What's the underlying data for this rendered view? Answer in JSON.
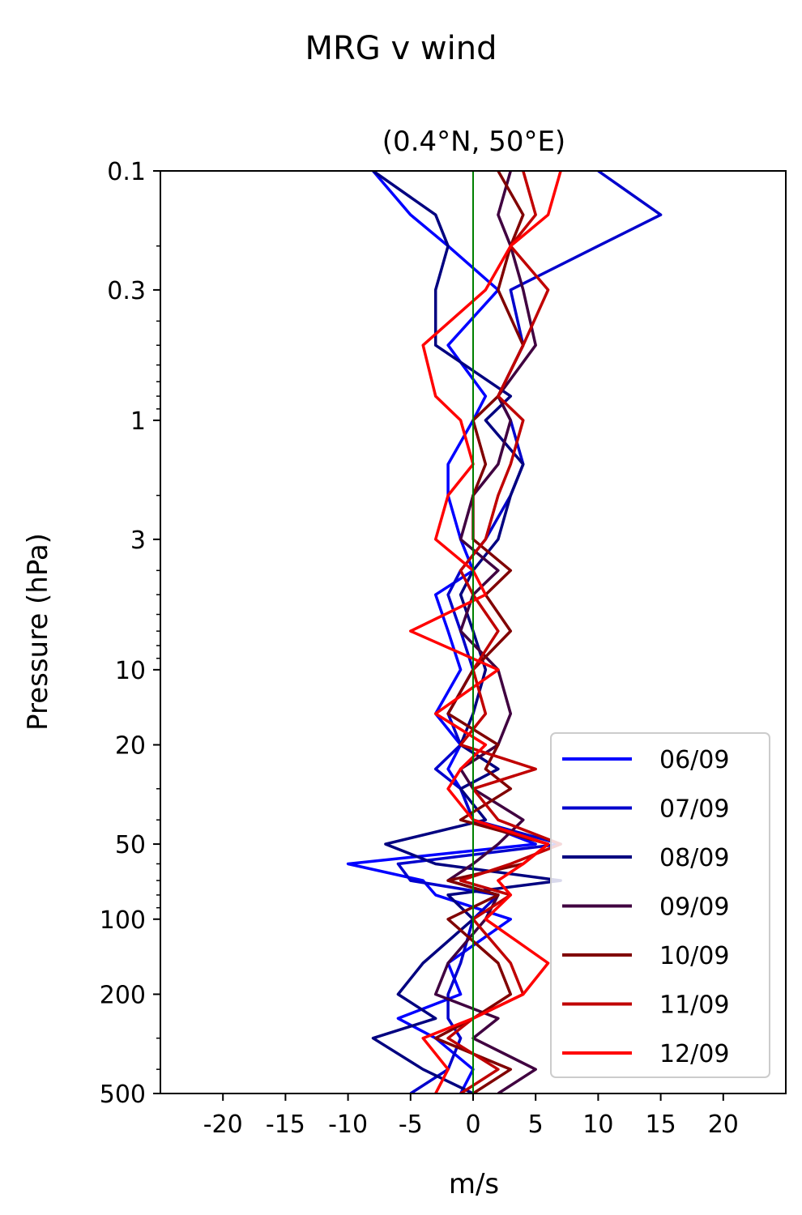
{
  "figure": {
    "suptitle": "MRG v wind"
  },
  "chart_data": {
    "type": "line",
    "title": "(0.4°N, 50°E)",
    "xlabel": "m/s",
    "ylabel": "Pressure (hPa)",
    "xlim": [
      -25,
      25
    ],
    "ylim": [
      500,
      0.1
    ],
    "yscale": "log",
    "x_ticks": [
      -20,
      -15,
      -10,
      -5,
      0,
      5,
      10,
      15,
      20
    ],
    "x_tick_labels": [
      "-20",
      "-15",
      "-10",
      "-5",
      "0",
      "5",
      "10",
      "15",
      "20"
    ],
    "y_ticks": [
      0.1,
      0.3,
      1,
      3,
      10,
      20,
      50,
      100,
      200,
      500
    ],
    "y_tick_labels": [
      "0.1",
      "0.3",
      "1",
      "3",
      "10",
      "20",
      "50",
      "100",
      "200",
      "500"
    ],
    "zero_line": {
      "x": 0,
      "color": "#008000"
    },
    "legend": {
      "position": "lower-right"
    },
    "pressure_levels": [
      0.1,
      0.15,
      0.2,
      0.3,
      0.5,
      0.8,
      1,
      1.5,
      2,
      3,
      4,
      5,
      7,
      10,
      15,
      20,
      25,
      30,
      40,
      50,
      60,
      70,
      80,
      100,
      150,
      200,
      250,
      300,
      400,
      500
    ],
    "series": [
      {
        "name": "06/09",
        "color": "#0000ff",
        "values": [
          -8,
          -5,
          -2,
          2,
          -2,
          1,
          0,
          -2,
          -2,
          -1,
          0,
          -3,
          -2,
          -1,
          -3,
          -1,
          -2,
          -1,
          0,
          5,
          -10,
          -4,
          -3,
          3,
          -2,
          -1,
          -6,
          -3,
          0,
          -1
        ]
      },
      {
        "name": "07/09",
        "color": "#0000cc",
        "values": [
          10,
          15,
          10,
          3,
          4,
          2,
          3,
          4,
          3,
          1,
          -1,
          -2,
          -1,
          0,
          -2,
          -1,
          -3,
          -1,
          0,
          7,
          -6,
          -5,
          2,
          0,
          -1,
          -2,
          -2,
          -1,
          -2,
          -5
        ]
      },
      {
        "name": "08/09",
        "color": "#000080",
        "values": [
          -8,
          -3,
          -2,
          -3,
          -3,
          3,
          1,
          4,
          3,
          2,
          0,
          -1,
          0,
          1,
          0,
          -1,
          2,
          -1,
          1,
          -7,
          -3,
          7,
          -2,
          0,
          -4,
          -6,
          -3,
          -8,
          -4,
          0
        ]
      },
      {
        "name": "09/09",
        "color": "#400040",
        "values": [
          3,
          2,
          3,
          4,
          5,
          2,
          3,
          2,
          0,
          -1,
          2,
          0,
          -1,
          2,
          3,
          2,
          -1,
          0,
          4,
          2,
          0,
          -2,
          2,
          1,
          -2,
          -3,
          2,
          0,
          5,
          2
        ]
      },
      {
        "name": "10/09",
        "color": "#800000",
        "values": [
          2,
          4,
          3,
          2,
          4,
          2,
          0,
          1,
          0,
          0,
          3,
          1,
          3,
          0,
          -2,
          2,
          1,
          3,
          -1,
          6,
          4,
          -2,
          2,
          -2,
          2,
          3,
          0,
          -3,
          3,
          0
        ]
      },
      {
        "name": "11/09",
        "color": "#c00000",
        "values": [
          4,
          5,
          3,
          6,
          4,
          2,
          4,
          3,
          2,
          1,
          -1,
          0,
          2,
          0,
          1,
          -1,
          5,
          0,
          2,
          7,
          3,
          -1,
          3,
          0,
          3,
          4,
          0,
          -2,
          2,
          -1
        ]
      },
      {
        "name": "12/09",
        "color": "#ff0000",
        "values": [
          7,
          6,
          3,
          1,
          -4,
          -3,
          -1,
          0,
          -2,
          -3,
          0,
          1,
          -5,
          2,
          -3,
          1,
          -1,
          -2,
          0,
          6,
          4,
          2,
          3,
          1,
          6,
          4,
          0,
          -4,
          -2,
          -3
        ]
      }
    ]
  }
}
